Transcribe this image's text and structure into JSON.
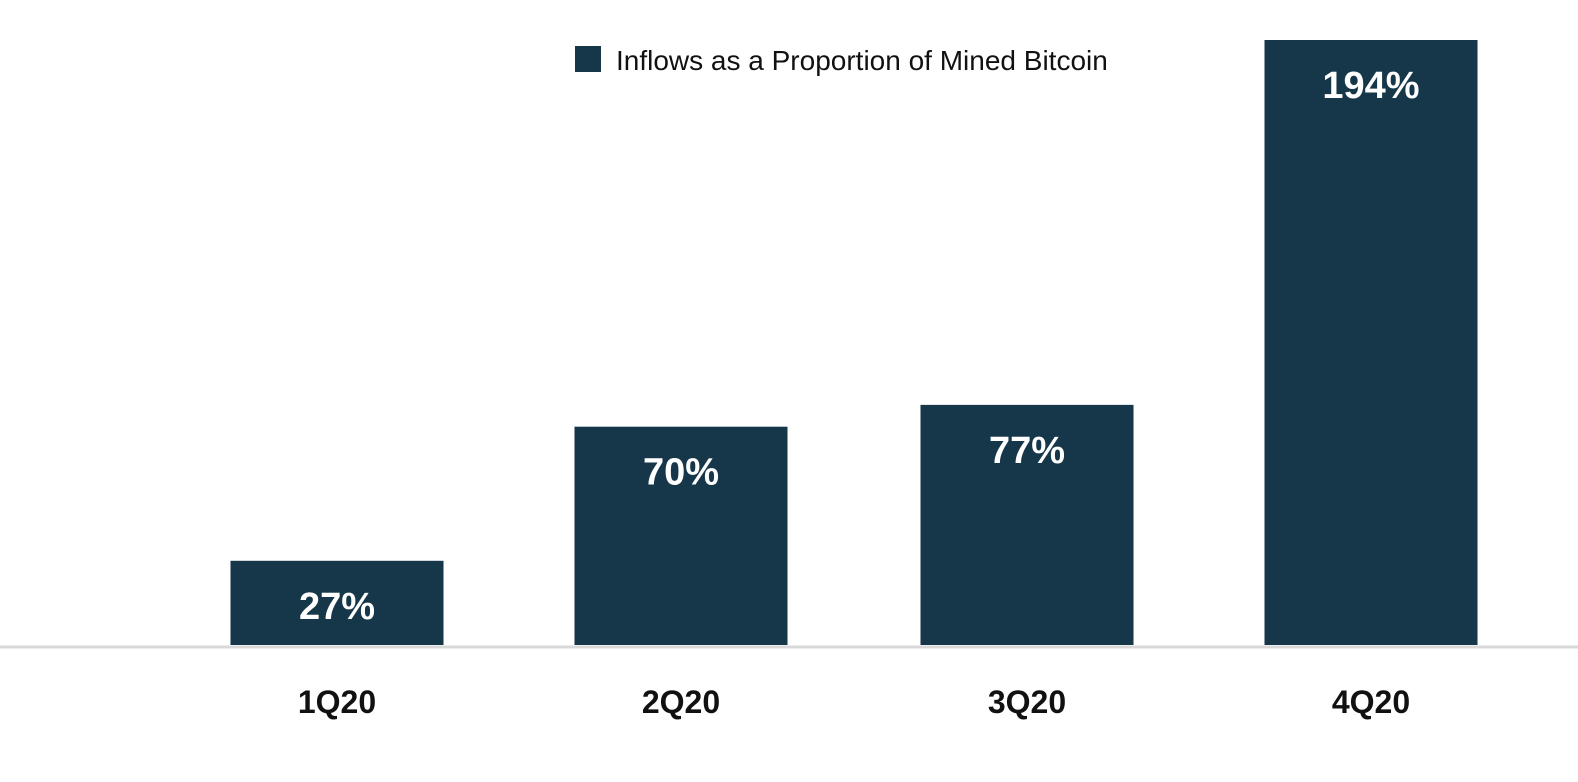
{
  "chart_data": {
    "type": "bar",
    "title": "",
    "xlabel": "",
    "ylabel": "",
    "categories": [
      "1Q20",
      "2Q20",
      "3Q20",
      "4Q20"
    ],
    "series": [
      {
        "name": "Inflows as a Proportion of Mined Bitcoin",
        "values": [
          27,
          70,
          77,
          194
        ],
        "labels": [
          "27%",
          "70%",
          "77%",
          "194%"
        ]
      }
    ],
    "ylim": [
      0,
      194
    ],
    "grid": false,
    "legend_position": "top-center",
    "colors": {
      "bar": "#163649",
      "axis": "#d9d9d9"
    }
  }
}
